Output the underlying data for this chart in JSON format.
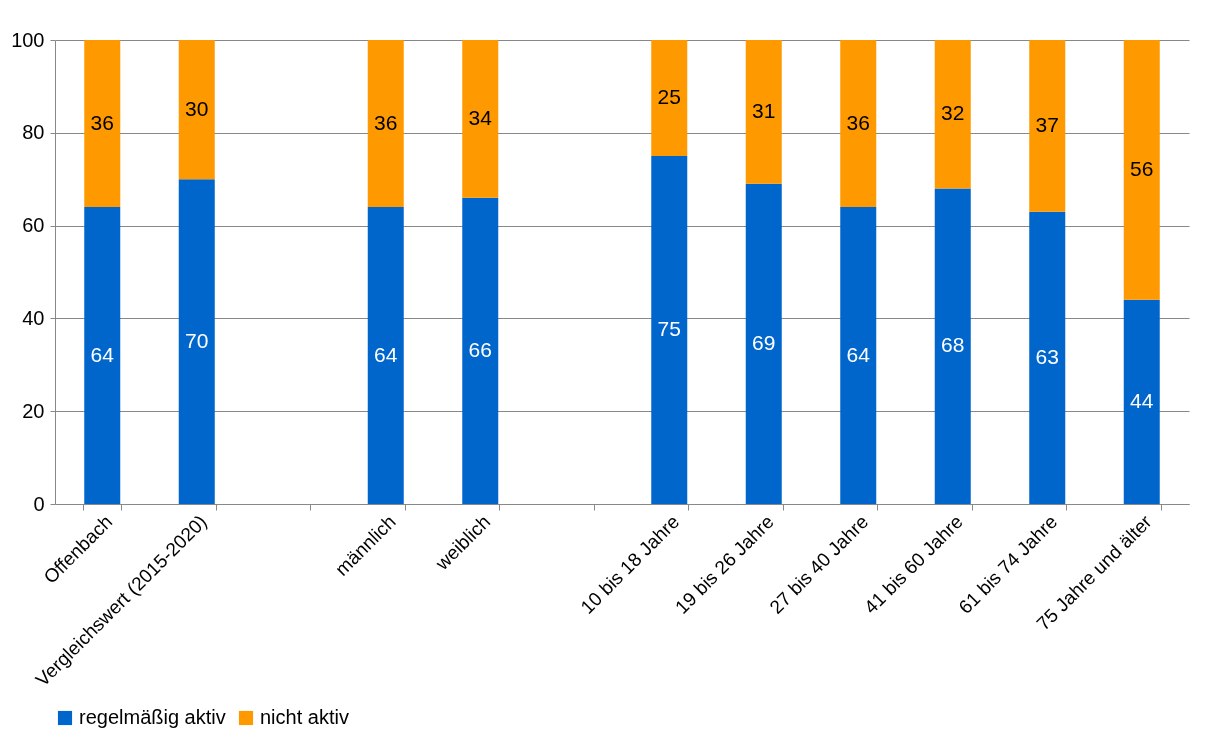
{
  "chart_data": {
    "type": "bar",
    "stacked": true,
    "categories": [
      "Offenbach",
      "Vergleichswert (2015-2020)",
      null,
      "männlich",
      "weiblich",
      null,
      "10 bis 18 Jahre",
      "19 bis 26 Jahre",
      "27 bis 40 Jahre",
      "41 bis 60 Jahre",
      "61 bis 74 Jahre",
      "75 Jahre und älter"
    ],
    "series": [
      {
        "name": "regelmäßig aktiv",
        "color": "#0066cc",
        "values": [
          64,
          70,
          null,
          64,
          66,
          null,
          75,
          69,
          64,
          68,
          63,
          44
        ]
      },
      {
        "name": "nicht aktiv",
        "color": "#ff9900",
        "values": [
          36,
          30,
          null,
          36,
          34,
          null,
          25,
          31,
          36,
          32,
          37,
          56
        ]
      }
    ],
    "ylim": [
      0,
      100
    ],
    "yticks": [
      0,
      20,
      40,
      60,
      80,
      100
    ],
    "grid": "y",
    "legend": "bottom",
    "data_labels": true
  }
}
